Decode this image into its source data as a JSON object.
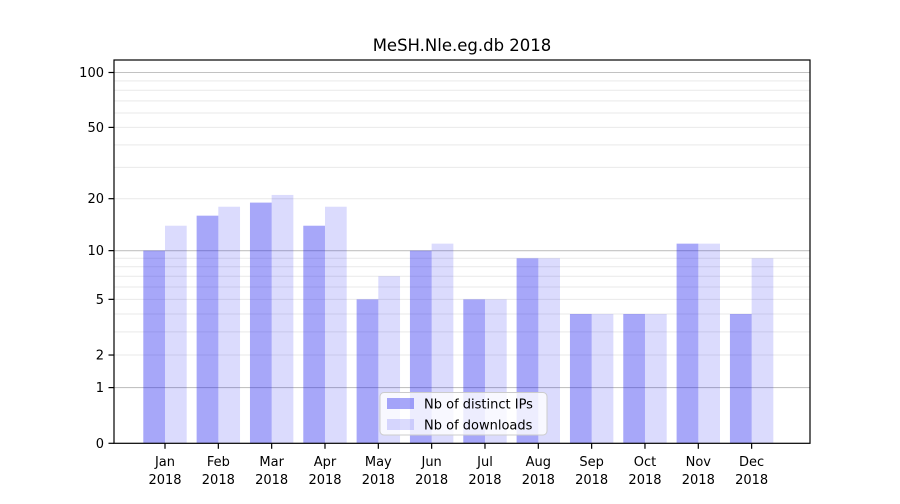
{
  "title": "MeSH.Nle.eg.db 2018",
  "colors": {
    "bar_ips": "rgba(34,34,240,0.40)",
    "bar_downloads": "rgba(34,34,240,0.16)",
    "grid_major": "#c2c2c2",
    "grid_minor": "#e9e9e9",
    "spine": "#000000",
    "text": "#000000",
    "legend_bg": "rgba(255,255,255,0.8)",
    "legend_border": "#cccccc"
  },
  "legend": {
    "items": [
      {
        "label": "Nb of distinct IPs"
      },
      {
        "label": "Nb of downloads"
      }
    ]
  },
  "chart_data": {
    "type": "bar",
    "title": "MeSH.Nle.eg.db 2018",
    "categories": [
      "Jan",
      "Feb",
      "Mar",
      "Apr",
      "May",
      "Jun",
      "Jul",
      "Aug",
      "Sep",
      "Oct",
      "Nov",
      "Dec"
    ],
    "year_label": "2018",
    "series": [
      {
        "name": "Nb of distinct IPs",
        "values": [
          10,
          16,
          19,
          14,
          5,
          10,
          5,
          9,
          4,
          4,
          11,
          4
        ]
      },
      {
        "name": "Nb of downloads",
        "values": [
          14,
          18,
          21,
          18,
          7,
          11,
          5,
          9,
          4,
          4,
          11,
          9
        ]
      }
    ],
    "xlabel": "",
    "ylabel": "",
    "y_scale": "log1p",
    "ylim": [
      0,
      117
    ],
    "y_ticks": [
      0,
      1,
      2,
      5,
      10,
      20,
      50,
      100
    ],
    "grid_major_at": [
      1,
      10,
      100
    ],
    "grid_minor_at": [
      2,
      3,
      4,
      5,
      6,
      7,
      8,
      9,
      20,
      30,
      40,
      50,
      60,
      70,
      80,
      90
    ],
    "grid": true,
    "legend_position": "lower center"
  }
}
